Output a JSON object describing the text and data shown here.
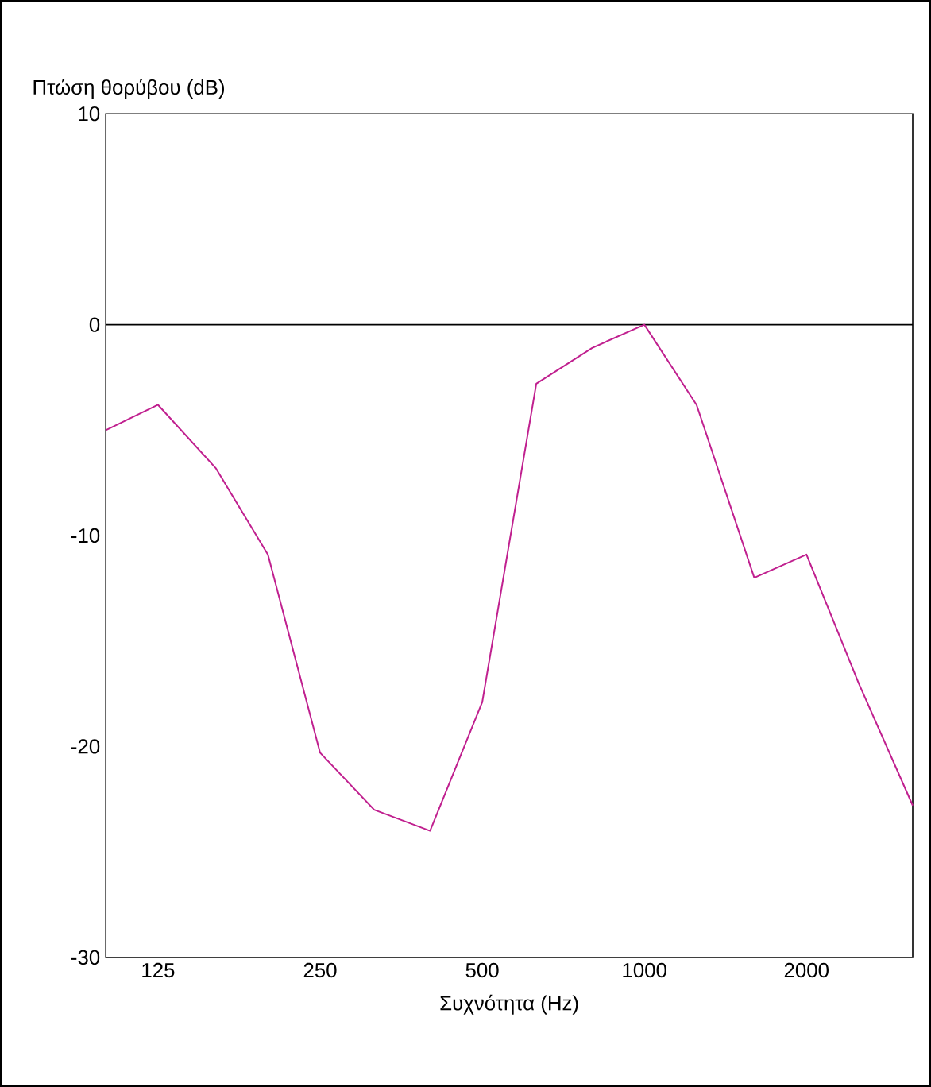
{
  "chart_data": {
    "type": "line",
    "xlabel": "Συχνότητα (Hz)",
    "ylabel": "Πτώση θορύβου (dB)",
    "x": [
      100,
      125,
      160,
      200,
      250,
      315,
      400,
      500,
      630,
      800,
      1000,
      1250,
      1600,
      2000,
      2500,
      3150
    ],
    "series": [
      {
        "color": "#c0208f",
        "values": [
          -5.0,
          -3.8,
          -6.8,
          -10.9,
          -20.3,
          -23.0,
          -24.0,
          -17.9,
          -2.8,
          -1.1,
          0,
          -3.8,
          -12.0,
          -10.9,
          -17.0,
          -22.8
        ]
      }
    ],
    "log": "x",
    "xlim": [
      100,
      3150
    ],
    "xticks": [
      125,
      250,
      500,
      1000,
      2000
    ],
    "ylim": [
      -30,
      10
    ],
    "yticks": [
      -30,
      -20,
      -10,
      0,
      10
    ],
    "ref_lines": [
      {
        "axis": "y",
        "value": 0,
        "color": "#000000"
      }
    ],
    "grid": false,
    "marker": "none",
    "line_style": "solid"
  }
}
